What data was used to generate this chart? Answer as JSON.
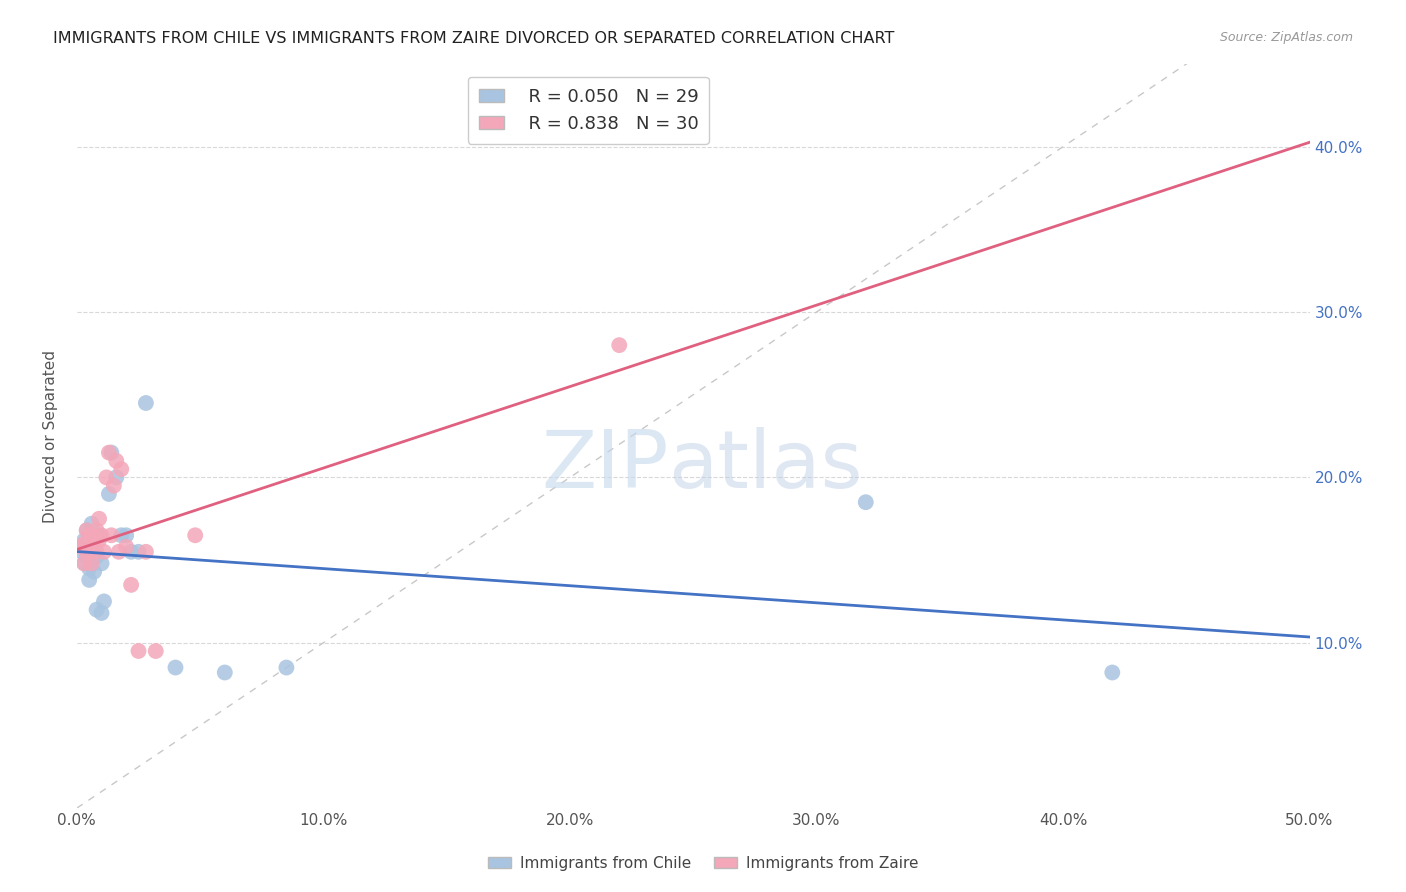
{
  "title": "IMMIGRANTS FROM CHILE VS IMMIGRANTS FROM ZAIRE DIVORCED OR SEPARATED CORRELATION CHART",
  "source": "Source: ZipAtlas.com",
  "ylabel": "Divorced or Separated",
  "xlim": [
    0.0,
    0.5
  ],
  "ylim": [
    0.0,
    0.45
  ],
  "xticks": [
    0.0,
    0.1,
    0.2,
    0.3,
    0.4,
    0.5
  ],
  "xtick_labels": [
    "0.0%",
    "10.0%",
    "20.0%",
    "30.0%",
    "40.0%",
    "50.0%"
  ],
  "yticks_right": [
    0.1,
    0.2,
    0.3,
    0.4
  ],
  "ytick_labels_right": [
    "10.0%",
    "20.0%",
    "30.0%",
    "40.0%"
  ],
  "legend_chile_label": "Immigrants from Chile",
  "legend_zaire_label": "Immigrants from Zaire",
  "chile_R": 0.05,
  "chile_N": 29,
  "zaire_R": 0.838,
  "zaire_N": 30,
  "chile_color": "#a8c4e0",
  "zaire_color": "#f4a7b9",
  "chile_line_color": "#4472c4",
  "zaire_line_color": "#e06080",
  "background_color": "#ffffff",
  "grid_color": "#d8d8d8",
  "chile_points_x": [
    0.002,
    0.003,
    0.003,
    0.004,
    0.004,
    0.005,
    0.005,
    0.006,
    0.006,
    0.007,
    0.008,
    0.008,
    0.009,
    0.01,
    0.01,
    0.011,
    0.013,
    0.014,
    0.016,
    0.018,
    0.02,
    0.022,
    0.025,
    0.028,
    0.04,
    0.06,
    0.085,
    0.32,
    0.42
  ],
  "chile_points_y": [
    0.155,
    0.148,
    0.162,
    0.152,
    0.168,
    0.138,
    0.145,
    0.158,
    0.172,
    0.143,
    0.12,
    0.152,
    0.165,
    0.148,
    0.118,
    0.125,
    0.19,
    0.215,
    0.2,
    0.165,
    0.165,
    0.155,
    0.155,
    0.245,
    0.085,
    0.082,
    0.085,
    0.185,
    0.082
  ],
  "zaire_points_x": [
    0.002,
    0.003,
    0.003,
    0.004,
    0.004,
    0.005,
    0.005,
    0.006,
    0.006,
    0.007,
    0.008,
    0.008,
    0.009,
    0.009,
    0.01,
    0.011,
    0.012,
    0.013,
    0.014,
    0.015,
    0.016,
    0.017,
    0.018,
    0.02,
    0.022,
    0.025,
    0.028,
    0.032,
    0.048,
    0.22
  ],
  "zaire_points_y": [
    0.158,
    0.16,
    0.148,
    0.155,
    0.168,
    0.165,
    0.155,
    0.148,
    0.165,
    0.158,
    0.168,
    0.155,
    0.162,
    0.175,
    0.165,
    0.155,
    0.2,
    0.215,
    0.165,
    0.195,
    0.21,
    0.155,
    0.205,
    0.158,
    0.135,
    0.095,
    0.155,
    0.095,
    0.165,
    0.28
  ]
}
